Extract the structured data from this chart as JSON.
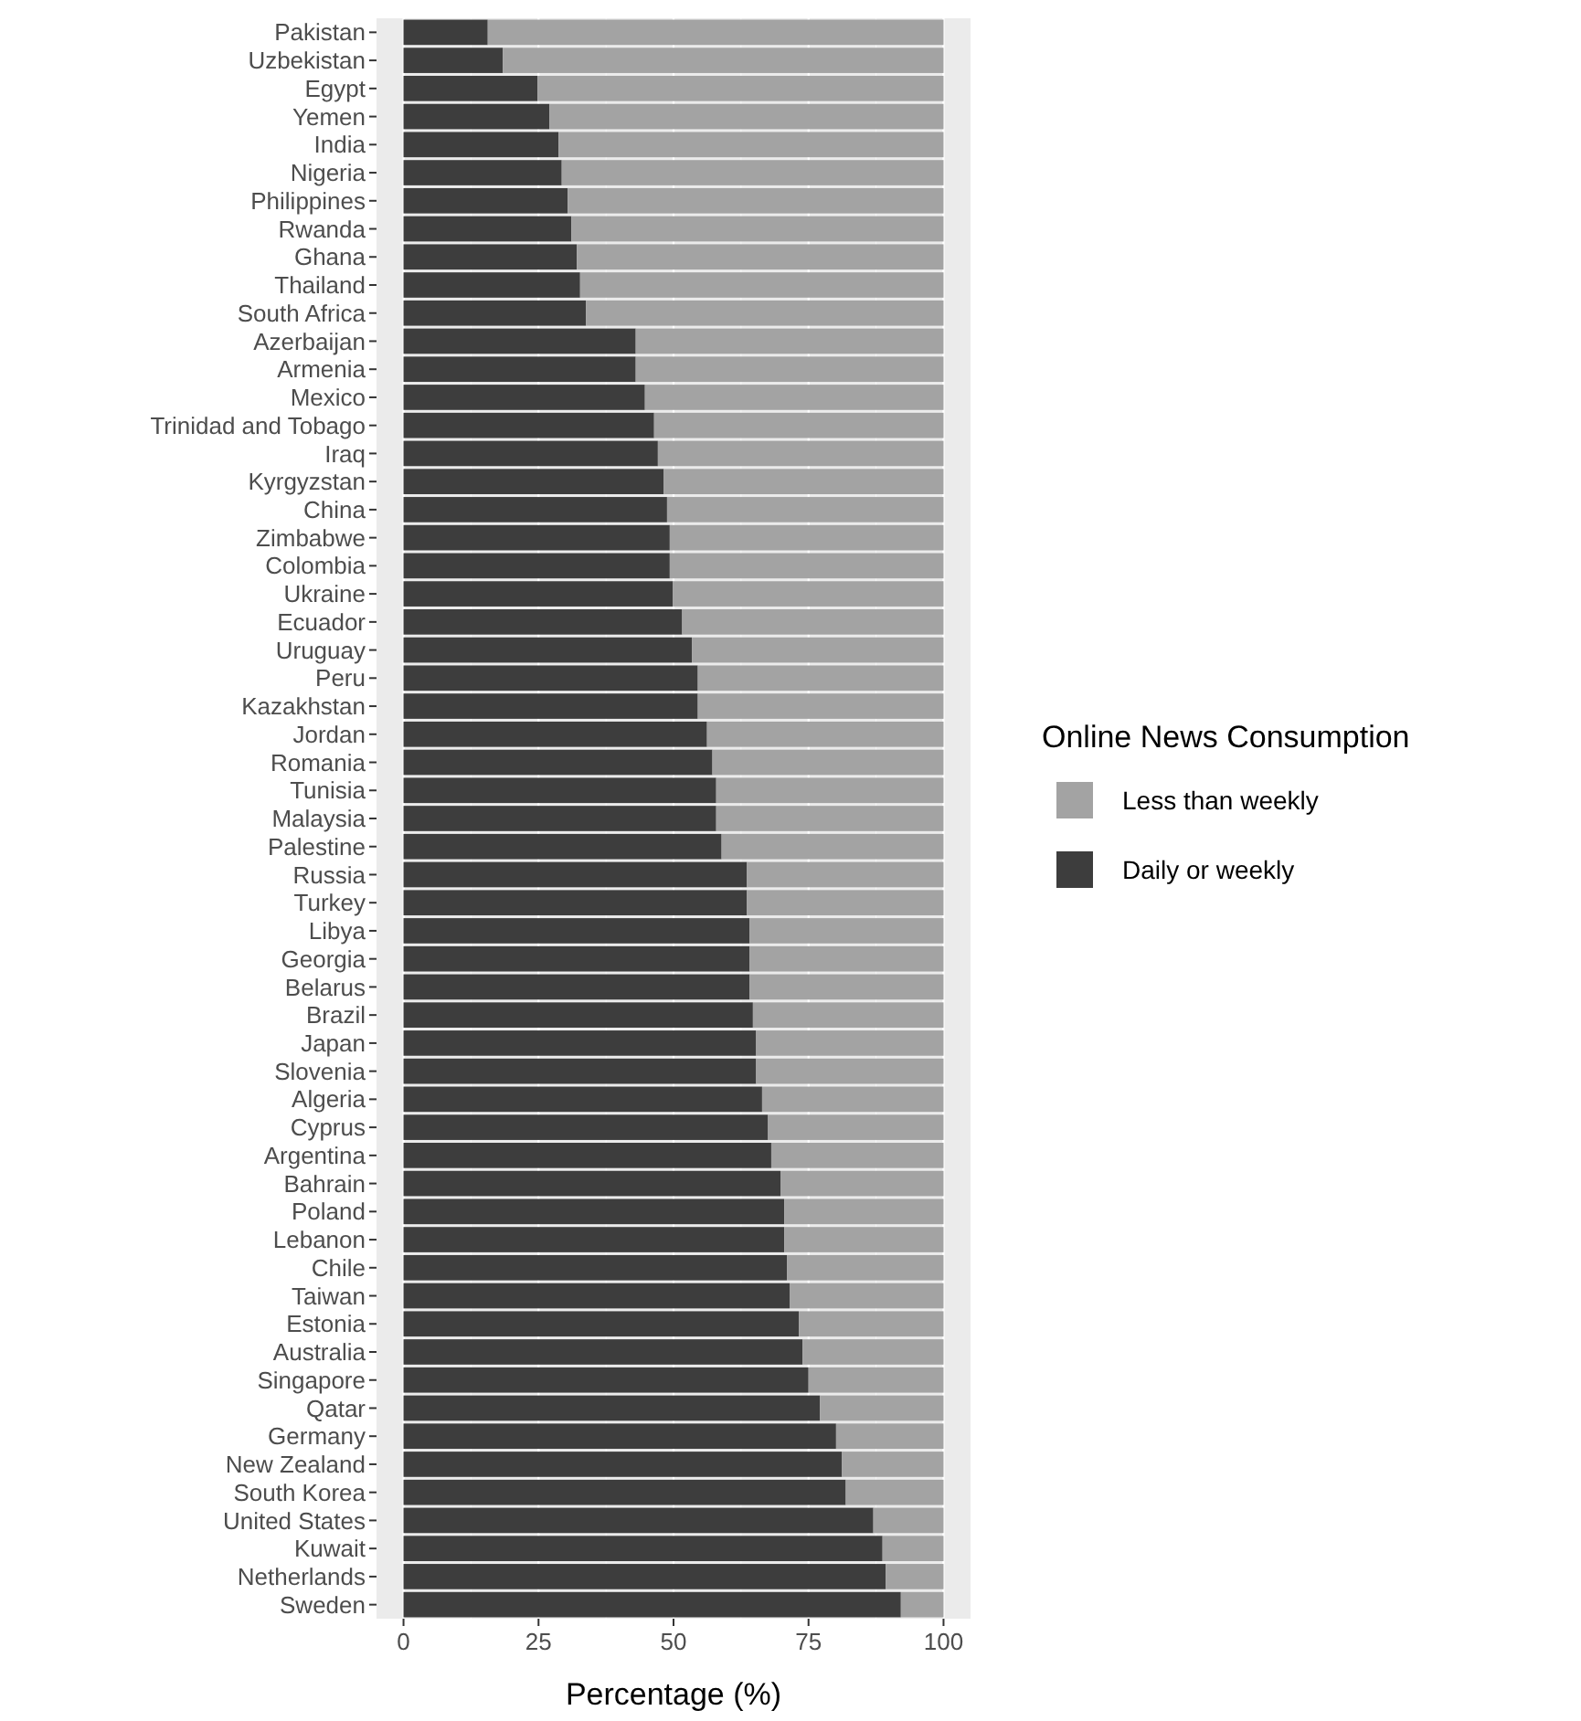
{
  "chart_data": {
    "type": "bar",
    "orientation": "horizontal",
    "stacked": true,
    "xlabel": "Percentage (%)",
    "legend_title": "Online News Consumption",
    "legend": "right",
    "grid": "x",
    "categories": [
      "Pakistan",
      "Uzbekistan",
      "Egypt",
      "Yemen",
      "India",
      "Nigeria",
      "Philippines",
      "Rwanda",
      "Ghana",
      "Thailand",
      "South Africa",
      "Azerbaijan",
      "Armenia",
      "Mexico",
      "Trinidad and Tobago",
      "Iraq",
      "Kyrgyzstan",
      "China",
      "Zimbabwe",
      "Colombia",
      "Ukraine",
      "Ecuador",
      "Uruguay",
      "Peru",
      "Kazakhstan",
      "Jordan",
      "Romania",
      "Tunisia",
      "Malaysia",
      "Palestine",
      "Russia",
      "Turkey",
      "Libya",
      "Georgia",
      "Belarus",
      "Brazil",
      "Japan",
      "Slovenia",
      "Algeria",
      "Cyprus",
      "Argentina",
      "Bahrain",
      "Poland",
      "Lebanon",
      "Chile",
      "Taiwan",
      "Estonia",
      "Australia",
      "Singapore",
      "Qatar",
      "Germany",
      "New Zealand",
      "South Korea",
      "United States",
      "Kuwait",
      "Netherlands",
      "Sweden"
    ],
    "series": [
      {
        "name": "Daily or weekly",
        "color": "#3d3d3d",
        "values": [
          15.6,
          18.4,
          24.8,
          27.0,
          28.7,
          29.3,
          30.4,
          31.1,
          32.1,
          32.7,
          33.8,
          43.0,
          43.0,
          44.7,
          46.4,
          47.1,
          48.2,
          48.8,
          49.3,
          49.3,
          49.9,
          51.6,
          53.4,
          54.5,
          54.5,
          56.2,
          57.2,
          57.9,
          57.9,
          58.9,
          63.6,
          63.6,
          64.1,
          64.1,
          64.1,
          64.7,
          65.3,
          65.3,
          66.4,
          67.5,
          68.1,
          69.8,
          70.5,
          70.5,
          71.0,
          71.5,
          73.2,
          73.9,
          75.0,
          77.1,
          80.1,
          81.2,
          81.9,
          87.0,
          88.7,
          89.3,
          92.1
        ]
      },
      {
        "name": "Less than weekly",
        "color": "#a3a3a3",
        "values": [
          84.4,
          81.6,
          75.2,
          73.0,
          71.3,
          70.7,
          69.6,
          68.9,
          67.9,
          67.3,
          66.2,
          57.0,
          57.0,
          55.3,
          53.6,
          52.9,
          51.8,
          51.2,
          50.7,
          50.7,
          50.1,
          48.4,
          46.6,
          45.5,
          45.5,
          43.8,
          42.8,
          42.1,
          42.1,
          41.1,
          36.4,
          36.4,
          35.9,
          35.9,
          35.9,
          35.3,
          34.7,
          34.7,
          33.6,
          32.5,
          31.9,
          30.2,
          29.5,
          29.5,
          29.0,
          28.5,
          26.8,
          26.1,
          25.0,
          22.9,
          19.9,
          18.8,
          18.1,
          13.0,
          11.3,
          10.7,
          7.9
        ]
      }
    ],
    "xlim": [
      -5,
      105
    ],
    "xticks": [
      0,
      25,
      50,
      75,
      100
    ]
  }
}
